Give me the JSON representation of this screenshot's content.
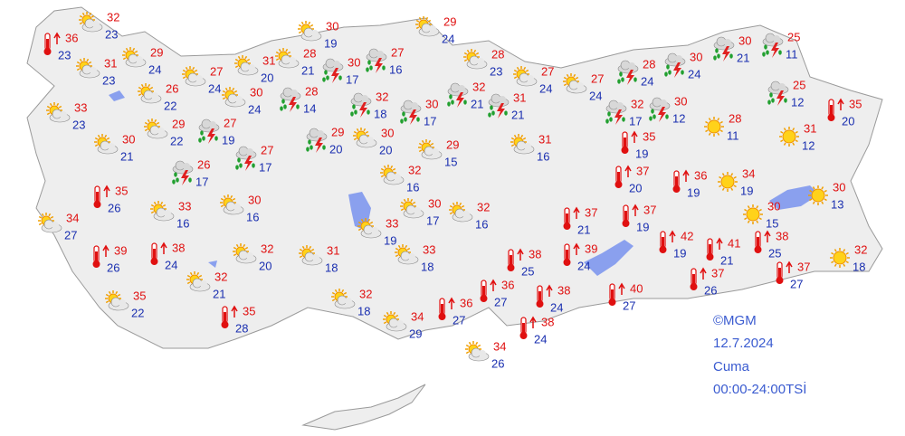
{
  "stations": [
    {
      "max": 32,
      "min": 23
    },
    {
      "max": 36,
      "min": 23
    },
    {
      "max": 31,
      "min": 23
    },
    {
      "max": 29,
      "min": 24
    },
    {
      "max": 27,
      "min": 24
    },
    {
      "max": 31,
      "min": 20
    },
    {
      "max": 28,
      "min": 21
    },
    {
      "max": 30,
      "min": 17
    },
    {
      "max": 30,
      "min": 19
    },
    {
      "max": 27,
      "min": 16
    },
    {
      "max": 29,
      "min": 24
    },
    {
      "max": 28,
      "min": 23
    },
    {
      "max": 27,
      "min": 24
    },
    {
      "max": 26,
      "min": 22
    },
    {
      "max": 30,
      "min": 24
    },
    {
      "max": 28,
      "min": 14
    },
    {
      "max": 32,
      "min": 18
    },
    {
      "max": 30,
      "min": 17
    },
    {
      "max": 32,
      "min": 21
    },
    {
      "max": 31,
      "min": 21
    },
    {
      "max": 27,
      "min": 24
    },
    {
      "max": 28,
      "min": 24
    },
    {
      "max": 30,
      "min": 24
    },
    {
      "max": 30,
      "min": 21
    },
    {
      "max": 25,
      "min": 11
    },
    {
      "max": 25,
      "min": 12
    },
    {
      "max": 35,
      "min": 20
    },
    {
      "max": 32,
      "min": 17
    },
    {
      "max": 30,
      "min": 12
    },
    {
      "max": 28,
      "min": 11
    },
    {
      "max": 31,
      "min": 12
    },
    {
      "max": 33,
      "min": 23
    },
    {
      "max": 30,
      "min": 21
    },
    {
      "max": 29,
      "min": 22
    },
    {
      "max": 27,
      "min": 19
    },
    {
      "max": 27,
      "min": 17
    },
    {
      "max": 26,
      "min": 17
    },
    {
      "max": 29,
      "min": 20
    },
    {
      "max": 30,
      "min": 20
    },
    {
      "max": 29,
      "min": 15
    },
    {
      "max": 31,
      "min": 16
    },
    {
      "max": 35,
      "min": 19
    },
    {
      "max": 37,
      "min": 20
    },
    {
      "max": 36,
      "min": 19
    },
    {
      "max": 34,
      "min": 19
    },
    {
      "max": 30,
      "min": 13
    },
    {
      "max": 30,
      "min": 15
    },
    {
      "max": 32,
      "min": 16
    },
    {
      "max": 30,
      "min": 17
    },
    {
      "max": 32,
      "min": 16
    },
    {
      "max": 35,
      "min": 26
    },
    {
      "max": 33,
      "min": 16
    },
    {
      "max": 30,
      "min": 16
    },
    {
      "max": 34,
      "min": 27
    },
    {
      "max": 37,
      "min": 21
    },
    {
      "max": 37,
      "min": 19
    },
    {
      "max": 42,
      "min": 19
    },
    {
      "max": 41,
      "min": 21
    },
    {
      "max": 38,
      "min": 25
    },
    {
      "max": 37,
      "min": 27
    },
    {
      "max": 32,
      "min": 18
    },
    {
      "max": 33,
      "min": 19
    },
    {
      "max": 31,
      "min": 18
    },
    {
      "max": 33,
      "min": 18
    },
    {
      "max": 32,
      "min": 20
    },
    {
      "max": 39,
      "min": 26
    },
    {
      "max": 38,
      "min": 24
    },
    {
      "max": 38,
      "min": 25
    },
    {
      "max": 39,
      "min": 24
    },
    {
      "max": 32,
      "min": 21
    },
    {
      "max": 36,
      "min": 27
    },
    {
      "max": 38,
      "min": 24
    },
    {
      "max": 40,
      "min": 27
    },
    {
      "max": 37,
      "min": 26
    },
    {
      "max": 35,
      "min": 22
    },
    {
      "max": 35,
      "min": 28
    },
    {
      "max": 32,
      "min": 18
    },
    {
      "max": 36,
      "min": 27
    },
    {
      "max": 34,
      "min": 29
    },
    {
      "max": 38,
      "min": 24
    },
    {
      "max": 34,
      "min": 26
    }
  ],
  "footer": {
    "source": "©MGM",
    "date": "12.7.2024",
    "day": "Cuma",
    "period": "00:00-24:00TSİ"
  }
}
